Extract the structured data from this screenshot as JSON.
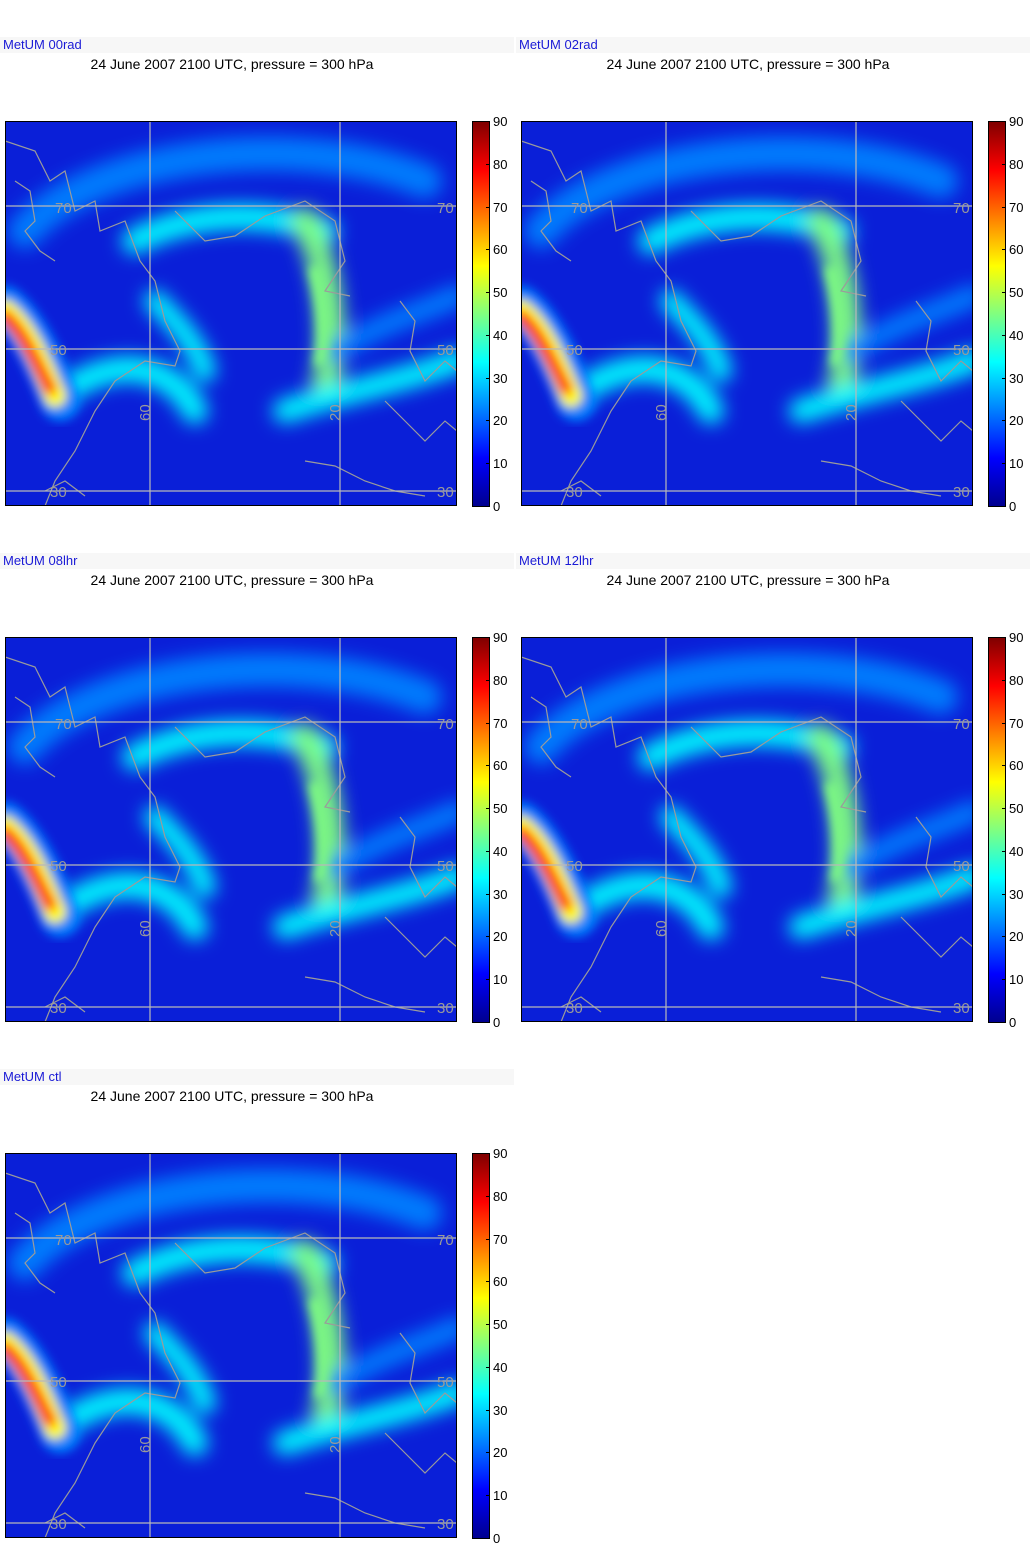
{
  "title_template": "24 June 2007 2100 UTC, pressure = 300 hPa",
  "colorbar": {
    "ticks": [
      "90",
      "80",
      "70",
      "60",
      "50",
      "40",
      "30",
      "20",
      "10",
      "0"
    ],
    "min": 0,
    "max": 90,
    "colors": [
      "#00008f",
      "#0000ff",
      "#0080ff",
      "#00ffff",
      "#80ff80",
      "#ffff00",
      "#ff8000",
      "#ff0000",
      "#800000"
    ]
  },
  "grid_labels": {
    "lat": [
      "70",
      "50",
      "30"
    ],
    "lon": [
      "60",
      "20"
    ]
  },
  "panels": [
    {
      "label": "MetUM 00rad",
      "title": "24 June 2007 2100 UTC, pressure = 300 hPa"
    },
    {
      "label": "MetUM 02rad",
      "title": "24 June 2007 2100 UTC, pressure = 300 hPa"
    },
    {
      "label": "MetUM 08lhr",
      "title": "24 June 2007 2100 UTC, pressure = 300 hPa"
    },
    {
      "label": "MetUM 12lhr",
      "title": "24 June 2007 2100 UTC, pressure = 300 hPa"
    },
    {
      "label": "MetUM ctl",
      "title": "24 June 2007 2100 UTC, pressure = 300 hPa"
    }
  ]
}
